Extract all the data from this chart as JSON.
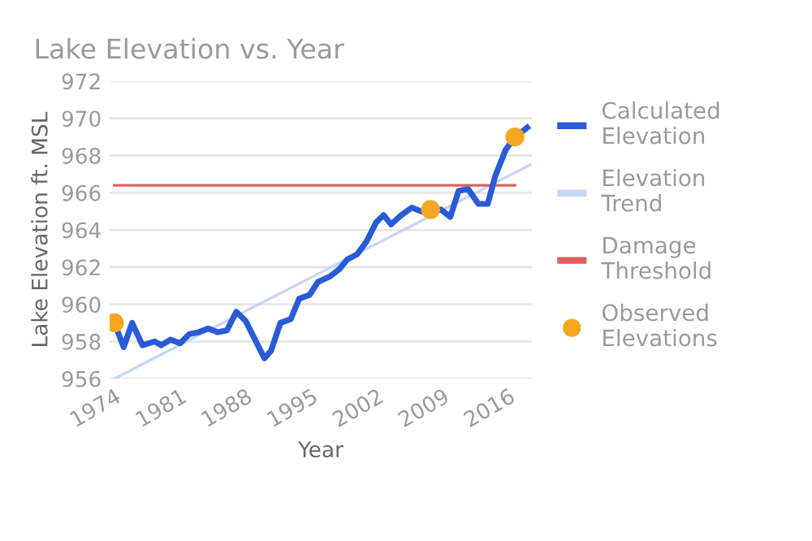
{
  "chart_data": {
    "type": "line",
    "title": "Lake Elevation vs. Year",
    "xlabel": "Year",
    "ylabel": "Lake Elevation ft. MSL",
    "xlim": [
      1973.5,
      2018.5
    ],
    "xticks": [
      1974,
      1981,
      1988,
      1995,
      2002,
      2009,
      2016
    ],
    "ylim": [
      956,
      972
    ],
    "yticks": [
      956,
      958,
      960,
      962,
      964,
      966,
      968,
      970,
      972
    ],
    "grid": "y",
    "legend": "right",
    "series": [
      {
        "name": "Calculated Elevation",
        "color": "#2a5bd7",
        "x": [
          1974,
          1975,
          1975.9,
          1977,
          1978.3,
          1979,
          1980,
          1981,
          1982,
          1983,
          1984,
          1985,
          1986,
          1987,
          1988,
          1989,
          1990,
          1990.7,
          1991.7,
          1992.8,
          1993.7,
          1994.8,
          1995.7,
          1997,
          1998,
          1998.8,
          1999.9,
          2000.9,
          2001.9,
          2002.7,
          2003.5,
          2004.6,
          2005.7,
          2006.7,
          2007.9,
          2008.8,
          2009.8,
          2010.7,
          2011.7,
          2012.8,
          2013.8,
          2014.6,
          2015.7,
          2016.7,
          2018
        ],
        "values": [
          959.0,
          957.7,
          959.0,
          957.8,
          958.0,
          957.8,
          958.1,
          957.9,
          958.4,
          958.5,
          958.7,
          958.5,
          958.6,
          959.6,
          959.1,
          958.1,
          957.1,
          957.5,
          959.0,
          959.2,
          960.3,
          960.5,
          961.2,
          961.5,
          961.9,
          962.4,
          962.7,
          963.4,
          964.4,
          964.8,
          964.3,
          964.8,
          965.2,
          965.0,
          965.0,
          965.1,
          964.7,
          966.1,
          966.2,
          965.4,
          965.4,
          966.9,
          968.3,
          969.0,
          969.5
        ]
      },
      {
        "name": "Elevation Trend",
        "color": "#c6d6f5",
        "x": [
          1974,
          2018.3
        ],
        "values": [
          956.0,
          967.5
        ]
      },
      {
        "name": "Damage Threshold",
        "color": "#e06060",
        "x": [
          1974,
          2016.7
        ],
        "values": [
          966.4,
          966.4
        ]
      },
      {
        "name": "Observed Elevations",
        "type": "scatter",
        "color": "#f5a623",
        "x": [
          1974,
          2007.7,
          2016.7
        ],
        "values": [
          959.0,
          965.1,
          969.0
        ]
      }
    ]
  }
}
